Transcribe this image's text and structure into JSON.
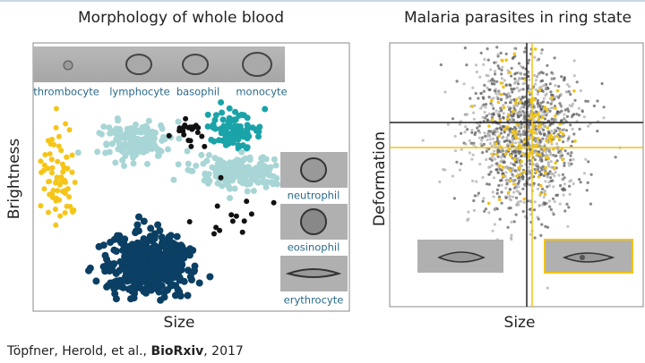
{
  "left": {
    "title": "Morphology of whole blood",
    "x_label": "Size",
    "y_label": "Brightness",
    "cell_labels": [
      "thrombocyte",
      "lymphocyte",
      "basophil",
      "monocyte",
      "neutrophil",
      "eosinophil",
      "erythrocyte"
    ]
  },
  "right": {
    "title": "Malaria parasites in ring state",
    "x_label": "Size",
    "y_label": "Deformation"
  },
  "citation": {
    "authors": "Töpfner, Herold, et al.,",
    "journal": "BioRxiv",
    "year": ", 2017"
  }
}
